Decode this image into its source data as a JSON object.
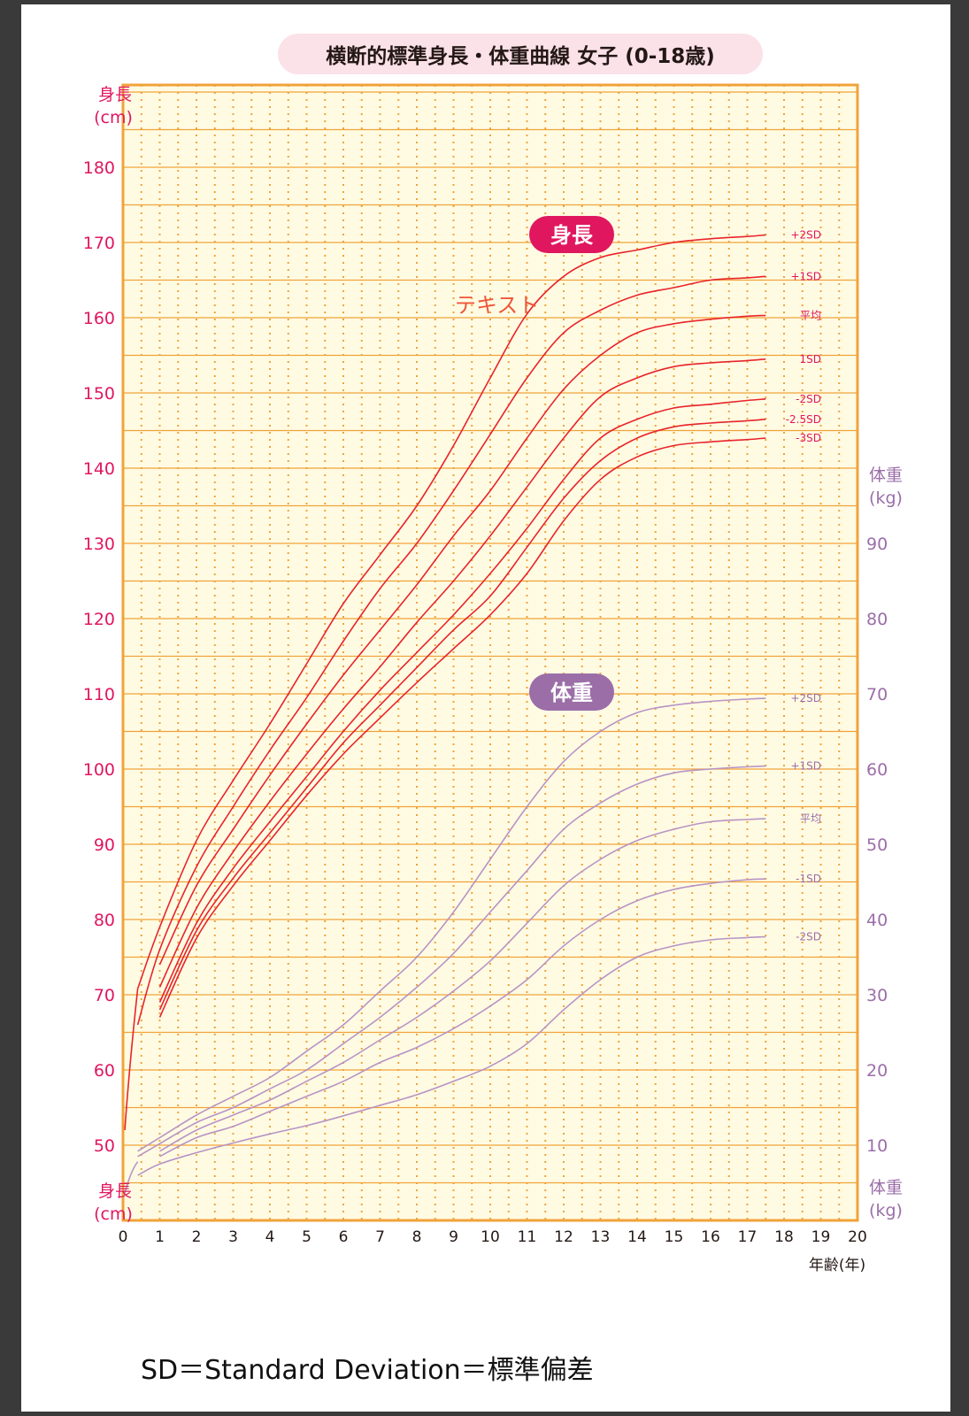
{
  "chart_data": {
    "type": "line",
    "title": "横断的標準身長・体重曲線 女子 (0-18歳)",
    "xlabel": "年齢(年)",
    "xlim": [
      0,
      20
    ],
    "x_ticks": [
      "0",
      "1",
      "2",
      "3",
      "4",
      "5",
      "6",
      "7",
      "8",
      "9",
      "10",
      "11",
      "12",
      "13",
      "14",
      "15",
      "16",
      "17",
      "18",
      "19",
      "20"
    ],
    "height_axis": {
      "label_line1": "身長",
      "label_line2": "(cm)",
      "ylim": [
        45,
        187
      ],
      "ticks": [
        "50",
        "60",
        "70",
        "80",
        "90",
        "100",
        "110",
        "120",
        "130",
        "140",
        "150",
        "160",
        "170",
        "180"
      ]
    },
    "weight_axis": {
      "label_line1": "体重",
      "label_line2": "(kg)",
      "ylim": [
        0,
        105
      ],
      "ticks": [
        "10",
        "20",
        "30",
        "40",
        "50",
        "60",
        "70",
        "80",
        "90"
      ]
    },
    "height_badge": "身長",
    "weight_badge": "体重",
    "annotation": "テキスト",
    "colors": {
      "height": "#e0175f",
      "height_curve": "#e8242b",
      "weight": "#9b6ea8",
      "weight_curve": "#b794c4",
      "grid": "#f0a33a",
      "plot_bg": "#fffbe3"
    },
    "height_series": [
      {
        "name": "+2SD",
        "x": [
          0.4,
          1,
          2,
          3,
          4,
          5,
          6,
          7,
          8,
          9,
          10,
          11,
          12,
          13,
          14,
          15,
          16,
          17,
          17.5
        ],
        "values": [
          70.8,
          79,
          90.5,
          98.5,
          106,
          114,
          122,
          128.5,
          135,
          143,
          152,
          160.5,
          165.5,
          168,
          169,
          170,
          170.5,
          170.8,
          171
        ]
      },
      {
        "name": "+1SD",
        "x": [
          0.4,
          1,
          2,
          3,
          4,
          5,
          6,
          7,
          8,
          9,
          10,
          11,
          12,
          13,
          14,
          15,
          16,
          17,
          17.5
        ],
        "values": [
          66,
          76,
          87,
          95,
          102.5,
          109.5,
          117,
          124,
          130,
          137,
          144.5,
          152,
          158,
          161,
          163,
          164,
          165,
          165.3,
          165.5
        ]
      },
      {
        "name": "平均",
        "x": [
          1,
          2,
          3,
          4,
          5,
          6,
          7,
          8,
          9,
          10,
          11,
          12,
          13,
          14,
          15,
          16,
          17,
          17.5
        ],
        "values": [
          74,
          84.5,
          92,
          99.2,
          106,
          112.5,
          118.5,
          124.5,
          131,
          137,
          144,
          150.5,
          155,
          158,
          159.2,
          159.8,
          160.2,
          160.3
        ]
      },
      {
        "name": "1SD",
        "x": [
          1,
          2,
          3,
          4,
          5,
          6,
          7,
          8,
          9,
          10,
          11,
          12,
          13,
          14,
          15,
          16,
          17,
          17.5
        ],
        "values": [
          71,
          81.5,
          89,
          95.7,
          102,
          108,
          113.6,
          119.5,
          125,
          131,
          137.5,
          144,
          149.5,
          152,
          153.5,
          154,
          154.3,
          154.5
        ]
      },
      {
        "name": "-2SD",
        "x": [
          1,
          2,
          3,
          4,
          5,
          6,
          7,
          8,
          9,
          10,
          11,
          12,
          13,
          14,
          15,
          16,
          17,
          17.5
        ],
        "values": [
          69,
          79.5,
          86.8,
          93,
          99,
          105,
          110.5,
          115.5,
          120.5,
          126,
          132,
          138.5,
          144,
          146.5,
          148,
          148.5,
          149,
          149.2
        ]
      },
      {
        "name": "-2.5SD",
        "x": [
          1,
          2,
          3,
          4,
          5,
          6,
          7,
          8,
          9,
          10,
          11,
          12,
          13,
          14,
          15,
          16,
          17,
          17.5
        ],
        "values": [
          68,
          78.5,
          85.5,
          91.5,
          97.5,
          103.5,
          108.5,
          113.5,
          118.5,
          123,
          129.5,
          136,
          141,
          144,
          145.5,
          146,
          146.3,
          146.5
        ]
      },
      {
        "name": "-3SD",
        "x": [
          1,
          2,
          3,
          4,
          5,
          6,
          7,
          8,
          9,
          10,
          11,
          12,
          13,
          14,
          15,
          16,
          17,
          17.5
        ],
        "values": [
          67,
          77.5,
          84.5,
          90.5,
          96.5,
          102,
          106.8,
          111.5,
          116,
          120.5,
          126,
          133,
          138.5,
          141.5,
          143,
          143.5,
          143.8,
          144
        ]
      }
    ],
    "weight_series": [
      {
        "name": "+2SD",
        "x": [
          0.4,
          1,
          2,
          3,
          4,
          5,
          6,
          7,
          8,
          9,
          10,
          11,
          12,
          13,
          14,
          15,
          16,
          17,
          17.5
        ],
        "values": [
          9.2,
          11,
          14,
          16.5,
          19,
          22.5,
          26,
          30.5,
          35,
          41,
          48,
          55,
          61,
          65,
          67.5,
          68.5,
          69,
          69.3,
          69.4
        ]
      },
      {
        "name": "+1SD",
        "x": [
          0.4,
          1,
          2,
          3,
          4,
          5,
          6,
          7,
          8,
          9,
          10,
          11,
          12,
          13,
          14,
          15,
          16,
          17,
          17.5
        ],
        "values": [
          8.5,
          10.2,
          13,
          15,
          17.5,
          20,
          23.5,
          27,
          31,
          35.5,
          41,
          46.5,
          52,
          55.5,
          58,
          59.5,
          60,
          60.3,
          60.4
        ]
      },
      {
        "name": "平均",
        "x": [
          1,
          2,
          3,
          4,
          5,
          6,
          7,
          8,
          9,
          10,
          11,
          12,
          13,
          14,
          15,
          16,
          17,
          17.5
        ],
        "values": [
          9.2,
          12,
          14,
          16,
          18.5,
          21,
          24,
          27,
          30.5,
          34.5,
          39.5,
          44.5,
          48,
          50.5,
          52,
          53,
          53.3,
          53.4
        ]
      },
      {
        "name": "-1SD",
        "x": [
          1,
          2,
          3,
          4,
          5,
          6,
          7,
          8,
          9,
          10,
          11,
          12,
          13,
          14,
          15,
          16,
          17,
          17.5
        ],
        "values": [
          8.5,
          11,
          12.5,
          14.5,
          16.5,
          18.5,
          21,
          23,
          25.5,
          28.5,
          32,
          36.5,
          40,
          42.5,
          44,
          44.8,
          45.3,
          45.4
        ]
      },
      {
        "name": "-2SD",
        "x": [
          0.4,
          1,
          2,
          3,
          4,
          5,
          6,
          7,
          8,
          9,
          10,
          11,
          12,
          13,
          14,
          15,
          16,
          17,
          17.5
        ],
        "values": [
          6,
          7.5,
          9,
          10.3,
          11.5,
          12.6,
          13.9,
          15.3,
          16.7,
          18.5,
          20.5,
          23.5,
          28,
          32,
          35,
          36.5,
          37.3,
          37.6,
          37.7
        ]
      }
    ]
  },
  "footnote": "SD＝Standard Deviation＝標準偏差"
}
